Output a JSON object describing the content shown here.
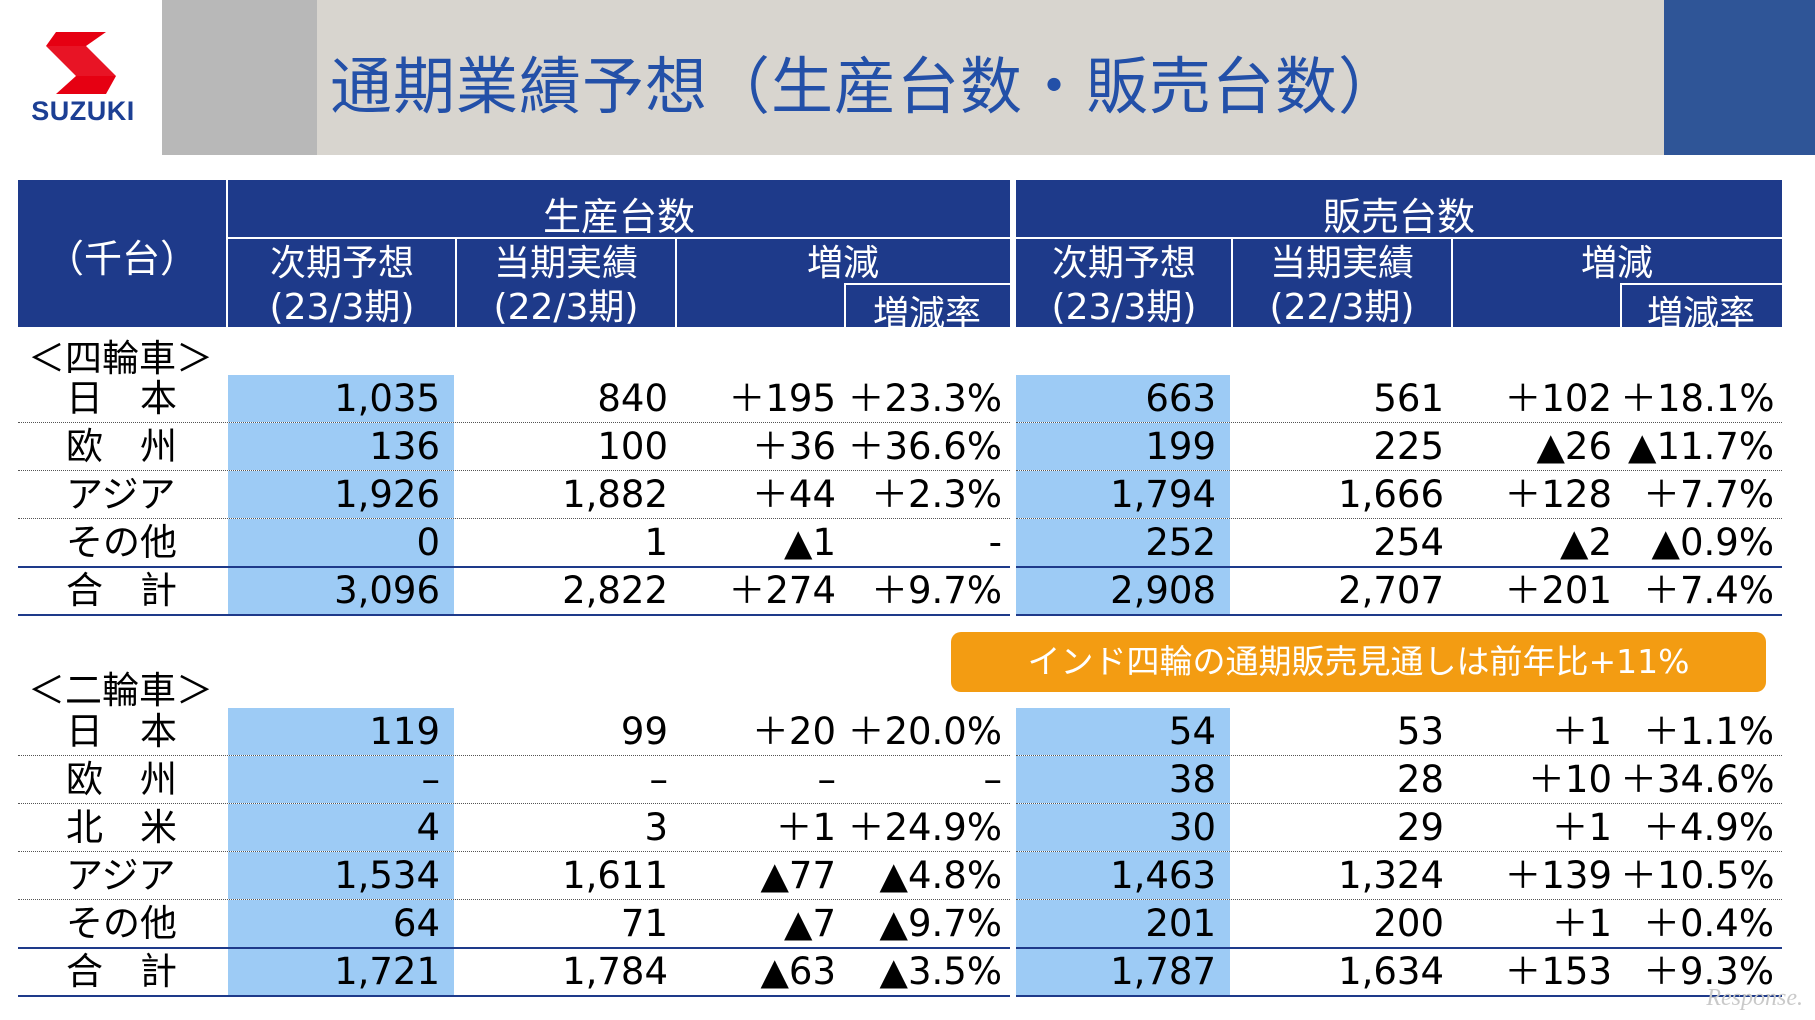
{
  "header": {
    "logo_text": "SUZUKI",
    "title": "通期業績予想（生産台数・販売台数）"
  },
  "table_header": {
    "unit": "（千台）",
    "production": "生産台数",
    "sales": "販売台数",
    "col_forecast_1": "次期予想",
    "col_forecast_2": "(23/3期)",
    "col_actual_1": "当期実績",
    "col_actual_2": "(22/3期)",
    "col_change": "増減",
    "col_rate": "増減率"
  },
  "four_wheel": {
    "title": "＜四輪車＞",
    "rows": [
      {
        "label": "日　本",
        "p": [
          "1,035",
          "840",
          "＋195",
          "＋23.3%"
        ],
        "s": [
          "663",
          "561",
          "＋102",
          "＋18.1%"
        ]
      },
      {
        "label": "欧　州",
        "p": [
          "136",
          "100",
          "＋36",
          "＋36.6%"
        ],
        "s": [
          "199",
          "225",
          "▲26",
          "▲11.7%"
        ]
      },
      {
        "label": "アジア",
        "p": [
          "1,926",
          "1,882",
          "＋44",
          "＋2.3%"
        ],
        "s": [
          "1,794",
          "1,666",
          "＋128",
          "＋7.7%"
        ]
      },
      {
        "label": "その他",
        "p": [
          "0",
          "1",
          "▲1",
          "-"
        ],
        "s": [
          "252",
          "254",
          "▲2",
          "▲0.9%"
        ]
      },
      {
        "label": "合　計",
        "p": [
          "3,096",
          "2,822",
          "＋274",
          "＋9.7%"
        ],
        "s": [
          "2,908",
          "2,707",
          "＋201",
          "＋7.4%"
        ]
      }
    ]
  },
  "callout": "インド四輪の通期販売見通しは前年比+11%",
  "two_wheel": {
    "title": "＜二輪車＞",
    "rows": [
      {
        "label": "日　本",
        "p": [
          "119",
          "99",
          "＋20",
          "＋20.0%"
        ],
        "s": [
          "54",
          "53",
          "＋1",
          "＋1.1%"
        ]
      },
      {
        "label": "欧　州",
        "p": [
          "–",
          "–",
          "–",
          "–"
        ],
        "s": [
          "38",
          "28",
          "＋10",
          "＋34.6%"
        ]
      },
      {
        "label": "北　米",
        "p": [
          "4",
          "3",
          "＋1",
          "＋24.9%"
        ],
        "s": [
          "30",
          "29",
          "＋1",
          "＋4.9%"
        ]
      },
      {
        "label": "アジア",
        "p": [
          "1,534",
          "1,611",
          "▲77",
          "▲4.8%"
        ],
        "s": [
          "1,463",
          "1,324",
          "＋139",
          "＋10.5%"
        ]
      },
      {
        "label": "その他",
        "p": [
          "64",
          "71",
          "▲7",
          "▲9.7%"
        ],
        "s": [
          "201",
          "200",
          "＋1",
          "＋0.4%"
        ]
      },
      {
        "label": "合　計",
        "p": [
          "1,721",
          "1,784",
          "▲63",
          "▲3.5%"
        ],
        "s": [
          "1,787",
          "1,634",
          "＋153",
          "＋9.3%"
        ]
      }
    ]
  },
  "watermark": "Response.",
  "colors": {
    "header_blue": "#1e3a8a",
    "highlight": "#9dcbf5",
    "title_blue": "#2350a8",
    "callout_orange": "#f39c12"
  }
}
